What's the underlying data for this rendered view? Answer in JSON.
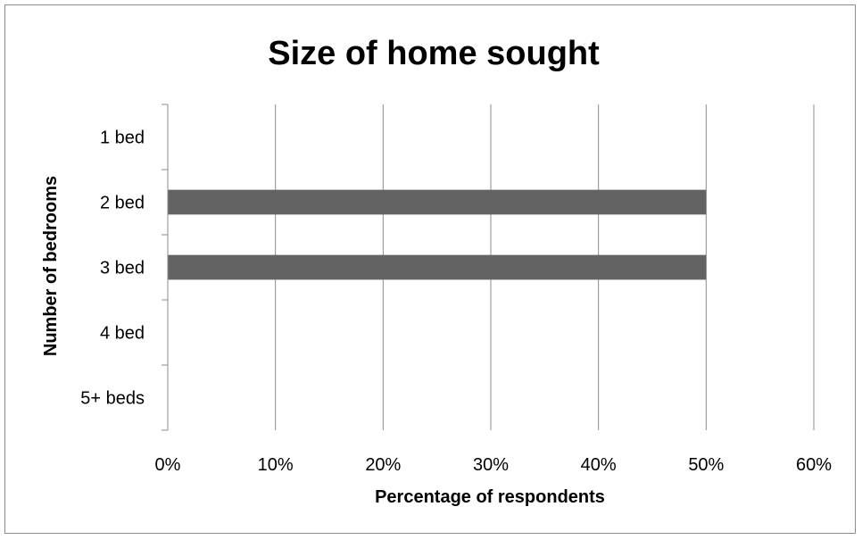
{
  "chart_data": {
    "type": "bar",
    "orientation": "horizontal",
    "title": "Size of home sought",
    "xlabel": "Percentage of respondents",
    "ylabel": "Number of bedrooms",
    "categories": [
      "1 bed",
      "2 bed",
      "3 bed",
      "4 bed",
      "5+ beds"
    ],
    "values": [
      0,
      50,
      50,
      0,
      0
    ],
    "xlim": [
      0,
      60
    ],
    "xticks": [
      "0%",
      "10%",
      "20%",
      "30%",
      "40%",
      "50%",
      "60%"
    ],
    "grid": "vertical major gridlines",
    "legend": "none",
    "bar_color": "#636363",
    "gridline_color": "#8c8c8c"
  }
}
